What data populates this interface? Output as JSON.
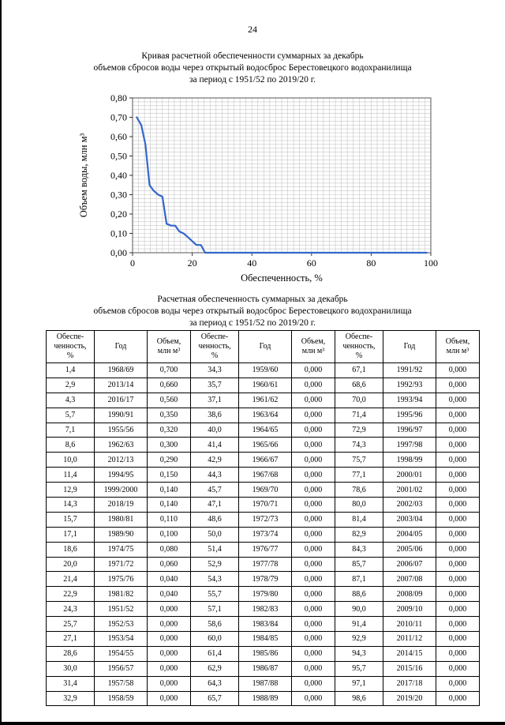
{
  "page": {
    "number": "24"
  },
  "chart_section": {
    "title": "Кривая расчетной обеспеченности суммарных за декабрь\nобъемов сбросов воды через открытый водосброс Берестовецкого водохранилища\nза период с 1951/52 по 2019/20 г."
  },
  "table_section": {
    "title": "Расчетная обеспеченность суммарных за декабрь\nобъемов сбросов воды через открытый водосброс Берестовецкого водохранилища\nза период с 1951/52 по 2019/20 г."
  },
  "chart_data": {
    "type": "line",
    "title": "Кривая расчетной обеспеченности суммарных за декабрь объемов сбросов воды",
    "xlabel": "Обеспеченность, %",
    "ylabel": "Объем  воды, млн м³",
    "xlim": [
      0,
      100
    ],
    "ylim": [
      0,
      0.8
    ],
    "x_ticks": [
      0,
      20,
      40,
      60,
      80,
      100
    ],
    "y_ticks": [
      0,
      0.1,
      0.2,
      0.3,
      0.4,
      0.5,
      0.6,
      0.7,
      0.8
    ],
    "grid": {
      "x_step": 2,
      "y_step": 0.02,
      "color": "#c6c6c6",
      "on": true
    },
    "legend": "none",
    "line_color": "#3366cc",
    "series": [
      {
        "name": "Объем воды, млн м³",
        "color": "#3366cc",
        "x": [
          1.4,
          2.9,
          4.3,
          5.7,
          7.1,
          8.6,
          10,
          11.4,
          12.9,
          14.3,
          15.7,
          17.1,
          18.6,
          20,
          21.4,
          22.9,
          24.3,
          25.7,
          27.1,
          28.6,
          30,
          31.4,
          32.9,
          34.3,
          35.7,
          37.1,
          38.6,
          40,
          41.4,
          42.9,
          44.3,
          45.7,
          47.1,
          48.6,
          50,
          51.4,
          52.9,
          54.3,
          55.7,
          57.1,
          58.6,
          60,
          61.4,
          62.9,
          64.3,
          65.7,
          67.1,
          68.6,
          70,
          71.4,
          72.9,
          74.3,
          75.7,
          77.1,
          78.6,
          80,
          81.4,
          82.9,
          84.3,
          85.7,
          87.1,
          88.6,
          90,
          91.4,
          92.9,
          94.3,
          95.7,
          97.1,
          98.6
        ],
        "y": [
          0.7,
          0.66,
          0.56,
          0.35,
          0.32,
          0.3,
          0.29,
          0.15,
          0.14,
          0.14,
          0.11,
          0.1,
          0.08,
          0.06,
          0.04,
          0.04,
          0,
          0,
          0,
          0,
          0,
          0,
          0,
          0,
          0,
          0,
          0,
          0,
          0,
          0,
          0,
          0,
          0,
          0,
          0,
          0,
          0,
          0,
          0,
          0,
          0,
          0,
          0,
          0,
          0,
          0,
          0,
          0,
          0,
          0,
          0,
          0,
          0,
          0,
          0,
          0,
          0,
          0,
          0,
          0,
          0,
          0,
          0,
          0,
          0,
          0,
          0,
          0,
          0
        ]
      }
    ]
  },
  "table": {
    "group_count": 3,
    "header_labels": [
      "Обеспе-\nченность,\n%",
      "Год",
      "Объем,\nмлн м³"
    ],
    "rows": [
      [
        "1,4",
        "1968/69",
        "0,700",
        "34,3",
        "1959/60",
        "0,000",
        "67,1",
        "1991/92",
        "0,000"
      ],
      [
        "2,9",
        "2013/14",
        "0,660",
        "35,7",
        "1960/61",
        "0,000",
        "68,6",
        "1992/93",
        "0,000"
      ],
      [
        "4,3",
        "2016/17",
        "0,560",
        "37,1",
        "1961/62",
        "0,000",
        "70,0",
        "1993/94",
        "0,000"
      ],
      [
        "5,7",
        "1990/91",
        "0,350",
        "38,6",
        "1963/64",
        "0,000",
        "71,4",
        "1995/96",
        "0,000"
      ],
      [
        "7,1",
        "1955/56",
        "0,320",
        "40,0",
        "1964/65",
        "0,000",
        "72,9",
        "1996/97",
        "0,000"
      ],
      [
        "8,6",
        "1962/63",
        "0,300",
        "41,4",
        "1965/66",
        "0,000",
        "74,3",
        "1997/98",
        "0,000"
      ],
      [
        "10,0",
        "2012/13",
        "0,290",
        "42,9",
        "1966/67",
        "0,000",
        "75,7",
        "1998/99",
        "0,000"
      ],
      [
        "11,4",
        "1994/95",
        "0,150",
        "44,3",
        "1967/68",
        "0,000",
        "77,1",
        "2000/01",
        "0,000"
      ],
      [
        "12,9",
        "1999/2000",
        "0,140",
        "45,7",
        "1969/70",
        "0,000",
        "78,6",
        "2001/02",
        "0,000"
      ],
      [
        "14,3",
        "2018/19",
        "0,140",
        "47,1",
        "1970/71",
        "0,000",
        "80,0",
        "2002/03",
        "0,000"
      ],
      [
        "15,7",
        "1980/81",
        "0,110",
        "48,6",
        "1972/73",
        "0,000",
        "81,4",
        "2003/04",
        "0,000"
      ],
      [
        "17,1",
        "1989/90",
        "0,100",
        "50,0",
        "1973/74",
        "0,000",
        "82,9",
        "2004/05",
        "0,000"
      ],
      [
        "18,6",
        "1974/75",
        "0,080",
        "51,4",
        "1976/77",
        "0,000",
        "84,3",
        "2005/06",
        "0,000"
      ],
      [
        "20,0",
        "1971/72",
        "0,060",
        "52,9",
        "1977/78",
        "0,000",
        "85,7",
        "2006/07",
        "0,000"
      ],
      [
        "21,4",
        "1975/76",
        "0,040",
        "54,3",
        "1978/79",
        "0,000",
        "87,1",
        "2007/08",
        "0,000"
      ],
      [
        "22,9",
        "1981/82",
        "0,040",
        "55,7",
        "1979/80",
        "0,000",
        "88,6",
        "2008/09",
        "0,000"
      ],
      [
        "24,3",
        "1951/52",
        "0,000",
        "57,1",
        "1982/83",
        "0,000",
        "90,0",
        "2009/10",
        "0,000"
      ],
      [
        "25,7",
        "1952/53",
        "0,000",
        "58,6",
        "1983/84",
        "0,000",
        "91,4",
        "2010/11",
        "0,000"
      ],
      [
        "27,1",
        "1953/54",
        "0,000",
        "60,0",
        "1984/85",
        "0,000",
        "92,9",
        "2011/12",
        "0,000"
      ],
      [
        "28,6",
        "1954/55",
        "0,000",
        "61,4",
        "1985/86",
        "0,000",
        "94,3",
        "2014/15",
        "0,000"
      ],
      [
        "30,0",
        "1956/57",
        "0,000",
        "62,9",
        "1986/87",
        "0,000",
        "95,7",
        "2015/16",
        "0,000"
      ],
      [
        "31,4",
        "1957/58",
        "0,000",
        "64,3",
        "1987/88",
        "0,000",
        "97,1",
        "2017/18",
        "0,000"
      ],
      [
        "32,9",
        "1958/59",
        "0,000",
        "65,7",
        "1988/89",
        "0,000",
        "98,6",
        "2019/20",
        "0,000"
      ]
    ]
  }
}
